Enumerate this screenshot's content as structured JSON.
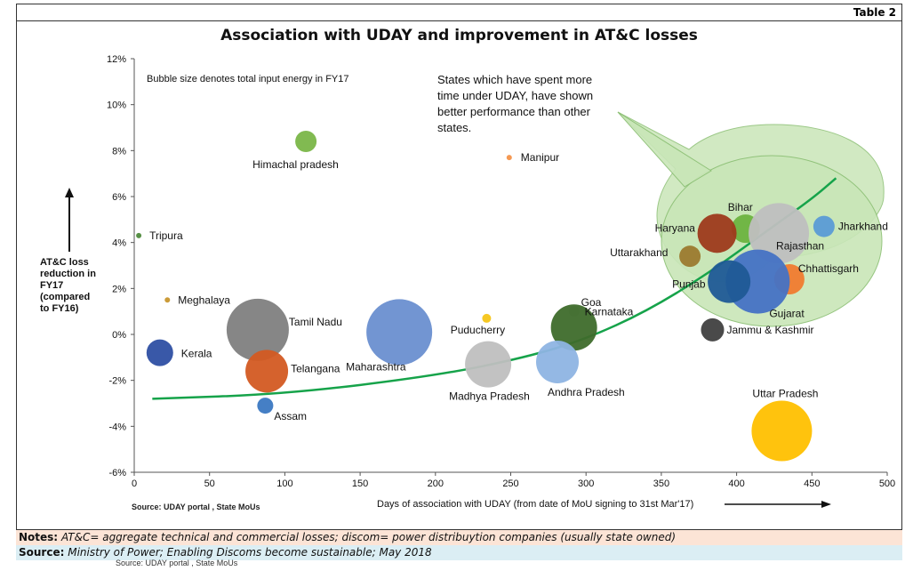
{
  "table_tag": "Table 2",
  "notes": {
    "label": "Notes:",
    "text": "AT&C= aggregate technical and commercial losses; discom= power distribuytion companies (usually state owned)"
  },
  "source": {
    "label": "Source:",
    "text": "Ministry of Power; Enabling Discoms become sustainable; May 2018"
  },
  "ghost_source": "Source: UDAY portal , State MoUs",
  "chart_data": {
    "type": "scatter",
    "title": "Association with UDAY and improvement in AT&C losses",
    "xlabel": "Days of association with UDAY (from date of MoU signing to 31st Mar'17)",
    "ylabel": [
      "AT&C loss",
      "reduction in",
      "FY17",
      "(compared",
      "to FY16)"
    ],
    "xlim": [
      0,
      500
    ],
    "ylim": [
      -6,
      12
    ],
    "x_ticks": [
      0,
      50,
      100,
      150,
      200,
      250,
      300,
      350,
      400,
      450,
      500
    ],
    "y_ticks": [
      -6,
      -4,
      -2,
      0,
      2,
      4,
      6,
      8,
      10,
      12
    ],
    "y_tick_labels": [
      "-6%",
      "-4%",
      "-2%",
      "0%",
      "2%",
      "4%",
      "6%",
      "8%",
      "10%",
      "12%"
    ],
    "grid": false,
    "bubble_note": "Bubble size denotes total input energy in FY17",
    "source_note": "Source: UDAY portal , State MoUs",
    "callout": "States which have spent more time under UDAY, have shown better performance than other states.",
    "trend": {
      "x": [
        12,
        100,
        200,
        260,
        300,
        340,
        380,
        420,
        450,
        466
      ],
      "y": [
        -2.8,
        -2.6,
        -1.8,
        -1.0,
        -0.2,
        1.0,
        2.6,
        4.5,
        5.9,
        6.8
      ],
      "color": "#16a34a"
    },
    "points": [
      {
        "name": "Tripura",
        "x": 3,
        "y": 4.3,
        "r": 3,
        "color": "#4e8a3c"
      },
      {
        "name": "Meghalaya",
        "x": 22,
        "y": 1.5,
        "r": 3,
        "color": "#c8962e"
      },
      {
        "name": "Kerala",
        "x": 17,
        "y": -0.8,
        "r": 15,
        "color": "#2e4fa3"
      },
      {
        "name": "Himachal pradesh",
        "x": 114,
        "y": 8.4,
        "r": 12,
        "color": "#7ab648"
      },
      {
        "name": "Tamil Nadu",
        "x": 82,
        "y": 0.2,
        "r": 35,
        "color": "#7f7f7f"
      },
      {
        "name": "Telangana",
        "x": 88,
        "y": -1.6,
        "r": 24,
        "color": "#d35a22"
      },
      {
        "name": "Assam",
        "x": 87,
        "y": -3.1,
        "r": 9,
        "color": "#3b78c2"
      },
      {
        "name": "Maharashtra",
        "x": 176,
        "y": 0.1,
        "r": 37,
        "color": "#6a8fd0"
      },
      {
        "name": "Manipur",
        "x": 249,
        "y": 7.7,
        "r": 3,
        "color": "#f4934a"
      },
      {
        "name": "Puducherry",
        "x": 234,
        "y": 0.7,
        "r": 5,
        "color": "#f5c518"
      },
      {
        "name": "Madhya Pradesh",
        "x": 235,
        "y": -1.3,
        "r": 26,
        "color": "#bfbfbf"
      },
      {
        "name": "Goa",
        "x": 292,
        "y": 1.0,
        "r": 6,
        "color": "#d9d9d9"
      },
      {
        "name": "Karnataka",
        "x": 292,
        "y": 0.3,
        "r": 26,
        "color": "#3e6b2b"
      },
      {
        "name": "Andhra Pradesh",
        "x": 281,
        "y": -1.2,
        "r": 24,
        "color": "#8eb4e3"
      },
      {
        "name": "Bihar",
        "x": 406,
        "y": 4.6,
        "r": 16,
        "color": "#6db33f"
      },
      {
        "name": "Haryana",
        "x": 387,
        "y": 4.4,
        "r": 22,
        "color": "#9e3a1b"
      },
      {
        "name": "Jharkhand",
        "x": 458,
        "y": 4.7,
        "r": 12,
        "color": "#5b9bd5"
      },
      {
        "name": "Rajasthan",
        "x": 428,
        "y": 4.4,
        "r": 34,
        "color": "#bfbfbf"
      },
      {
        "name": "Uttarakhand",
        "x": 369,
        "y": 3.4,
        "r": 12,
        "color": "#9c7a2e"
      },
      {
        "name": "Chhattisgarh",
        "x": 435,
        "y": 2.4,
        "r": 17,
        "color": "#f07b2f"
      },
      {
        "name": "Gujarat",
        "x": 414,
        "y": 2.3,
        "r": 36,
        "color": "#4472c4"
      },
      {
        "name": "Punjab",
        "x": 395,
        "y": 2.3,
        "r": 24,
        "color": "#1f5a96"
      },
      {
        "name": "Jammu & Kashmir",
        "x": 384,
        "y": 0.2,
        "r": 13,
        "color": "#404040"
      },
      {
        "name": "Uttar Pradesh",
        "x": 430,
        "y": -4.2,
        "r": 34,
        "color": "#ffc000"
      }
    ]
  }
}
